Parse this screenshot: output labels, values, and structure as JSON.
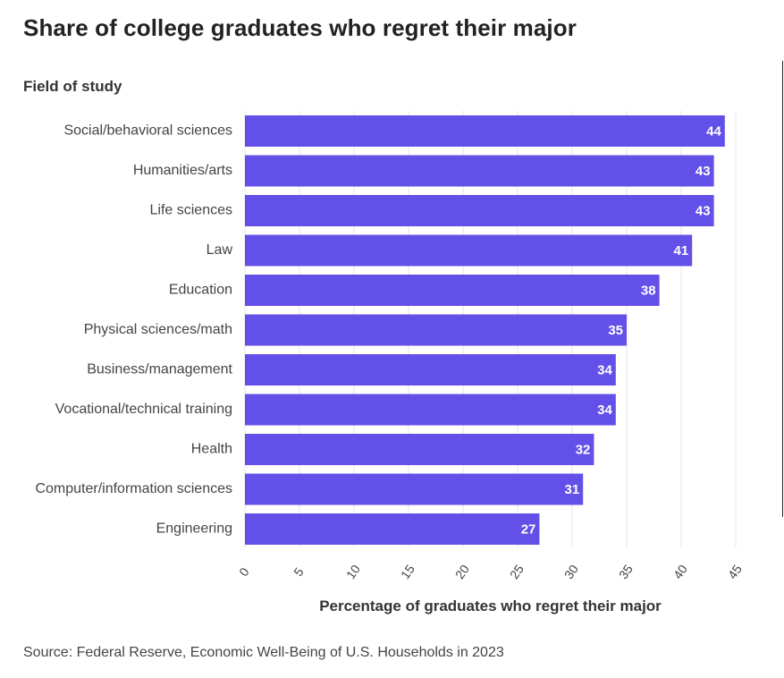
{
  "chart_data": {
    "type": "bar",
    "orientation": "horizontal",
    "title": "Share of college graduates who regret their major",
    "ylabel": "Field of study",
    "xlabel": "Percentage of graduates who regret their major",
    "source": "Source: Federal Reserve, Economic Well-Being of U.S. Households in 2023",
    "categories": [
      "Social/behavioral sciences",
      "Humanities/arts",
      "Life sciences",
      "Law",
      "Education",
      "Physical sciences/math",
      "Business/management",
      "Vocational/technical training",
      "Health",
      "Computer/information sciences",
      "Engineering"
    ],
    "values": [
      44,
      43,
      43,
      41,
      38,
      35,
      34,
      34,
      32,
      31,
      27
    ],
    "xlim": [
      0,
      45
    ],
    "xticks": [
      0,
      5,
      10,
      15,
      20,
      25,
      30,
      35,
      40,
      45
    ],
    "grid": "vertical",
    "bar_color": "#6350e8",
    "grid_color": "#e6e6e6"
  }
}
